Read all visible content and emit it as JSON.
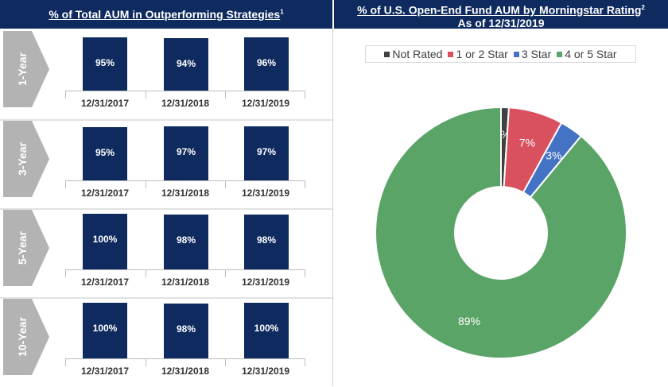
{
  "left_header": {
    "title": "% of Total AUM in Outperforming Strategies",
    "footnote": "1"
  },
  "right_header": {
    "title": "% of U.S. Open-End Fund AUM by Morningstar Rating",
    "footnote": "2",
    "subtitle": "As of 12/31/2019"
  },
  "periods": [
    {
      "label": "1-Year",
      "bars": [
        {
          "date": "12/31/2017",
          "value": 95,
          "label": "95%"
        },
        {
          "date": "12/31/2018",
          "value": 94,
          "label": "94%"
        },
        {
          "date": "12/31/2019",
          "value": 96,
          "label": "96%"
        }
      ]
    },
    {
      "label": "3-Year",
      "bars": [
        {
          "date": "12/31/2017",
          "value": 95,
          "label": "95%"
        },
        {
          "date": "12/31/2018",
          "value": 97,
          "label": "97%"
        },
        {
          "date": "12/31/2019",
          "value": 97,
          "label": "97%"
        }
      ]
    },
    {
      "label": "5-Year",
      "bars": [
        {
          "date": "12/31/2017",
          "value": 100,
          "label": "100%"
        },
        {
          "date": "12/31/2018",
          "value": 98,
          "label": "98%"
        },
        {
          "date": "12/31/2019",
          "value": 98,
          "label": "98%"
        }
      ]
    },
    {
      "label": "10-Year",
      "bars": [
        {
          "date": "12/31/2017",
          "value": 100,
          "label": "100%"
        },
        {
          "date": "12/31/2018",
          "value": 98,
          "label": "98%"
        },
        {
          "date": "12/31/2019",
          "value": 100,
          "label": "100%"
        }
      ]
    }
  ],
  "chart_data": [
    {
      "type": "bar",
      "title": "% of Total AUM in Outperforming Strategies",
      "categories": [
        "12/31/2017",
        "12/31/2018",
        "12/31/2019"
      ],
      "series": [
        {
          "name": "1-Year",
          "values": [
            95,
            94,
            96
          ]
        },
        {
          "name": "3-Year",
          "values": [
            95,
            97,
            97
          ]
        },
        {
          "name": "5-Year",
          "values": [
            100,
            98,
            98
          ]
        },
        {
          "name": "10-Year",
          "values": [
            100,
            98,
            100
          ]
        }
      ]
    },
    {
      "type": "pie",
      "title": "% of U.S. Open-End Fund AUM by Morningstar Rating",
      "subtitle": "As of 12/31/2019",
      "legend": "top",
      "slices": [
        {
          "name": "Not Rated",
          "value": 1,
          "label": "1%",
          "color": "#404040"
        },
        {
          "name": "1 or 2 Star",
          "value": 7,
          "label": "7%",
          "color": "#d9515f"
        },
        {
          "name": "3 Star",
          "value": 3,
          "label": "3%",
          "color": "#4472c4"
        },
        {
          "name": "4 or 5 Star",
          "value": 89,
          "label": "89%",
          "color": "#5ba467"
        }
      ]
    }
  ],
  "colors": {
    "navy": "#0e2a5e",
    "arrow_grey": "#b3b3b3"
  }
}
